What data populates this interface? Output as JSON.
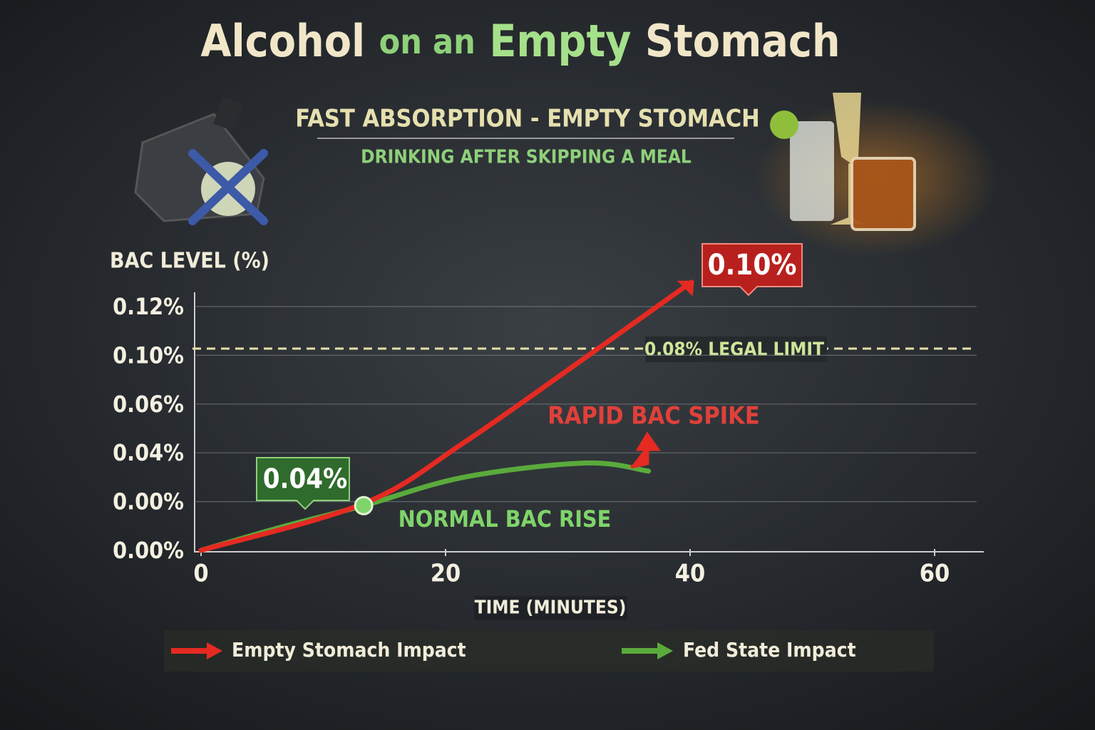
{
  "chart_data": {
    "type": "line",
    "title": [
      "Alcohol",
      "on an",
      "Empty",
      "Stomach"
    ],
    "subtitle": "FAST ABSORPTION - EMPTY STOMACH",
    "subtitle2": "DRINKING AFTER SKIPPING A MEAL",
    "y_label": "BAC LEVEL (%)",
    "x_label": "TIME (MINUTES)",
    "y_tick_labels": [
      "0.00%",
      "0.00%",
      "0.04%",
      "0.06%",
      "0.10%",
      "0.12%"
    ],
    "xlim": [
      0,
      64
    ],
    "xticks": [
      0,
      20,
      40,
      60
    ],
    "ylim": [
      0,
      0.132
    ],
    "series": [
      {
        "name": "Empty Stomach Impact",
        "color": "#e52a22",
        "x": [
          0,
          13.3,
          21.5,
          33.1,
          40.1
        ],
        "values": [
          0,
          0.023,
          0.053,
          0.102,
          0.132
        ]
      },
      {
        "name": "Fed State Impact",
        "color": "#5aaa3c",
        "x": [
          0,
          6.9,
          13.3,
          21.5,
          31.4,
          36.6
        ],
        "values": [
          0,
          0.012,
          0.022,
          0.036,
          0.043,
          0.039
        ]
      }
    ],
    "annotations": {
      "legal_limit": "0.08% LEGAL LIMIT",
      "peak": "0.10%",
      "early": "0.04%",
      "spike": "RAPID BAC SPIKE",
      "normal": "NORMAL BAC RISE"
    }
  }
}
